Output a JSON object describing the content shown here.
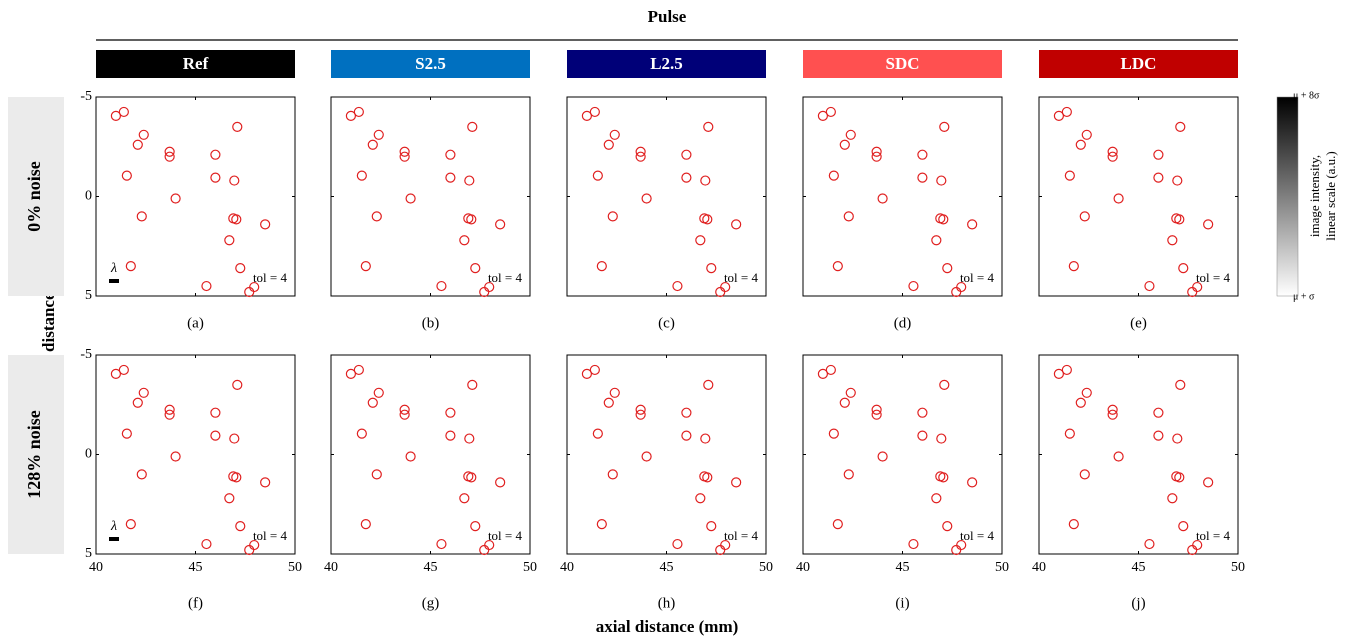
{
  "chart_data": {
    "type": "scatter",
    "title": "Pulse",
    "xlabel": "axial distance (mm)",
    "ylabel": "lateral distance (mm)",
    "columns": [
      {
        "name": "Ref",
        "color": "#000000"
      },
      {
        "name": "S2.5",
        "color": "#0070c0"
      },
      {
        "name": "L2.5",
        "color": "#000078"
      },
      {
        "name": "SDC",
        "color": "#ff5050"
      },
      {
        "name": "LDC",
        "color": "#c00000"
      }
    ],
    "rows": [
      "0% noise",
      "128% noise"
    ],
    "panel_labels": [
      "(a)",
      "(b)",
      "(c)",
      "(d)",
      "(e)",
      "(f)",
      "(g)",
      "(h)",
      "(i)",
      "(j)"
    ],
    "annotation": "tol = 4",
    "scale_bar_label": "λ",
    "marker_color": "#e02020",
    "x": [
      41.0,
      41.4,
      42.4,
      42.1,
      43.7,
      43.7,
      46.0,
      47.1,
      41.55,
      46.0,
      46.95,
      44.0,
      42.3,
      46.9,
      47.05,
      48.5,
      46.7,
      41.75,
      47.25,
      45.55,
      47.95,
      47.7
    ],
    "y": [
      -4.05,
      -4.25,
      -3.1,
      -2.6,
      -2.25,
      -2.0,
      -2.1,
      -3.5,
      -1.05,
      -0.95,
      -0.8,
      0.1,
      1.0,
      1.1,
      1.15,
      1.4,
      2.2,
      3.5,
      3.6,
      4.5,
      4.55,
      4.8
    ],
    "xlim": [
      40,
      50
    ],
    "ylim": [
      5,
      -5
    ],
    "xticks": [
      40,
      45,
      50
    ],
    "yticks": [
      -5,
      0,
      5
    ],
    "colorbar": {
      "label": [
        "image intensity,",
        "linear scale (a.u.)"
      ],
      "top": "μ + 8σ",
      "bottom": "μ + σ"
    }
  }
}
